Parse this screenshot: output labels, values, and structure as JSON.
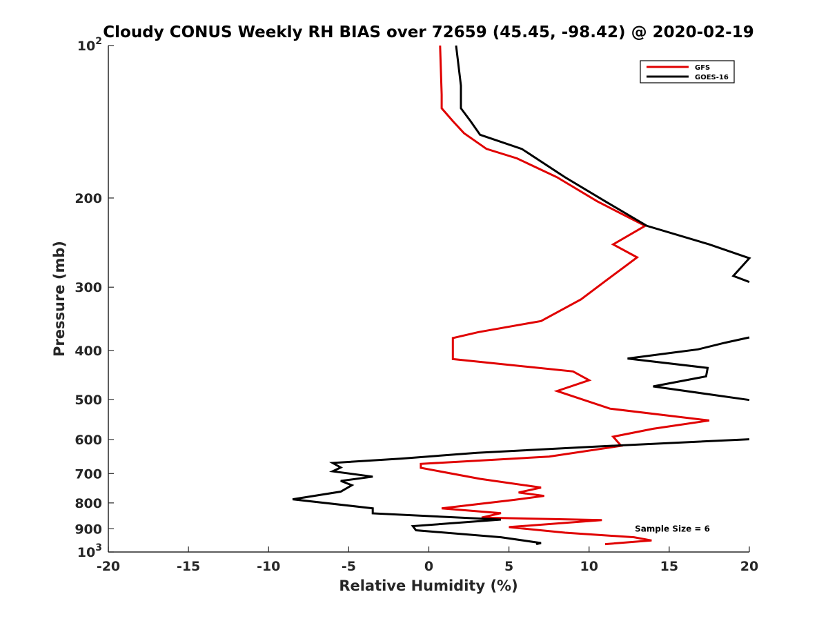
{
  "chart_data": {
    "type": "line",
    "title": "Cloudy CONUS Weekly RH BIAS over 72659 (45.45, -98.42) @ 2020-02-19",
    "xlabel": "Relative Humidity (%)",
    "ylabel": "Pressure (mb)",
    "xlim": [
      -20,
      20
    ],
    "ylim": [
      100,
      1000
    ],
    "y_scale": "log",
    "y_reversed": true,
    "x_ticks": [
      -20,
      -15,
      -10,
      -5,
      0,
      5,
      10,
      15,
      20
    ],
    "x_tick_labels": [
      "-20",
      "-15",
      "-10",
      "-5",
      "0",
      "5",
      "10",
      "15",
      "20"
    ],
    "y_ticks": [
      100,
      200,
      300,
      400,
      500,
      600,
      700,
      800,
      900,
      1000
    ],
    "y_tick_labels": [
      "10^2",
      "200",
      "300",
      "400",
      "500",
      "600",
      "700",
      "800",
      "900",
      "10^3"
    ],
    "grid": false,
    "legend_position": "top-right",
    "series": [
      {
        "name": "GFS",
        "color": "#e00000",
        "points": [
          [
            0.7,
            100
          ],
          [
            0.8,
            125
          ],
          [
            0.8,
            133
          ],
          [
            1.5,
            141
          ],
          [
            2.2,
            149
          ],
          [
            3.6,
            160
          ],
          [
            5.5,
            167
          ],
          [
            8.0,
            182
          ],
          [
            10.5,
            203
          ],
          [
            13.5,
            227
          ],
          [
            11.5,
            247
          ],
          [
            13.0,
            262
          ],
          [
            11.0,
            292
          ],
          [
            9.5,
            317
          ],
          [
            7.0,
            350
          ],
          [
            3.1,
            368
          ],
          [
            1.5,
            378
          ],
          [
            1.5,
            403
          ],
          [
            1.5,
            416
          ],
          [
            9.0,
            440
          ],
          [
            10.0,
            458
          ],
          [
            8.0,
            481
          ],
          [
            11.3,
            521
          ],
          [
            17.5,
            550
          ],
          [
            14.0,
            571
          ],
          [
            11.5,
            592
          ],
          [
            12.0,
            617
          ],
          [
            7.5,
            648
          ],
          [
            -0.5,
            670
          ],
          [
            -0.5,
            682
          ],
          [
            3.2,
            717
          ],
          [
            7.0,
            746
          ],
          [
            5.6,
            763
          ],
          [
            7.2,
            775
          ],
          [
            5.3,
            789
          ],
          [
            0.8,
            820
          ],
          [
            4.5,
            838
          ],
          [
            3.3,
            855
          ],
          [
            10.8,
            865
          ],
          [
            5.0,
            893
          ],
          [
            8.5,
            916
          ],
          [
            12.8,
            935
          ],
          [
            13.9,
            949
          ],
          [
            11.0,
            965
          ]
        ]
      },
      {
        "name": "GOES-16",
        "color": "#000000",
        "points": [
          [
            1.7,
            100
          ],
          [
            2.0,
            120
          ],
          [
            2.0,
            133
          ],
          [
            2.6,
            141
          ],
          [
            3.2,
            150
          ],
          [
            5.8,
            160
          ],
          [
            8.5,
            182
          ],
          [
            11.0,
            203
          ],
          [
            13.6,
            227
          ],
          [
            17.5,
            247
          ],
          [
            20.0,
            263
          ],
          [
            19.0,
            285
          ],
          [
            20.0,
            293
          ],
          [
            null,
            330
          ],
          [
            20.0,
            377
          ],
          [
            18.5,
            386
          ],
          [
            16.8,
            398
          ],
          [
            12.4,
            415
          ],
          [
            17.4,
            433
          ],
          [
            17.3,
            450
          ],
          [
            14.0,
            471
          ],
          [
            20.0,
            501
          ],
          [
            null,
            560
          ],
          [
            20.0,
            599
          ],
          [
            10.5,
            619
          ],
          [
            3.0,
            637
          ],
          [
            -1.7,
            654
          ],
          [
            -6.0,
            667
          ],
          [
            -5.5,
            681
          ],
          [
            -6.0,
            693
          ],
          [
            -3.5,
            710
          ],
          [
            -5.5,
            724
          ],
          [
            -4.8,
            738
          ],
          [
            -5.5,
            760
          ],
          [
            -8.5,
            787
          ],
          [
            -3.5,
            820
          ],
          [
            -3.5,
            839
          ],
          [
            4.5,
            863
          ],
          [
            -1.0,
            889
          ],
          [
            -0.8,
            906
          ],
          [
            4.5,
            935
          ],
          [
            7.0,
            960
          ],
          [
            6.7,
            965
          ]
        ]
      }
    ],
    "annotations": [
      {
        "text": "Sample Size = 6",
        "x": 15.2,
        "y": 900
      }
    ]
  }
}
